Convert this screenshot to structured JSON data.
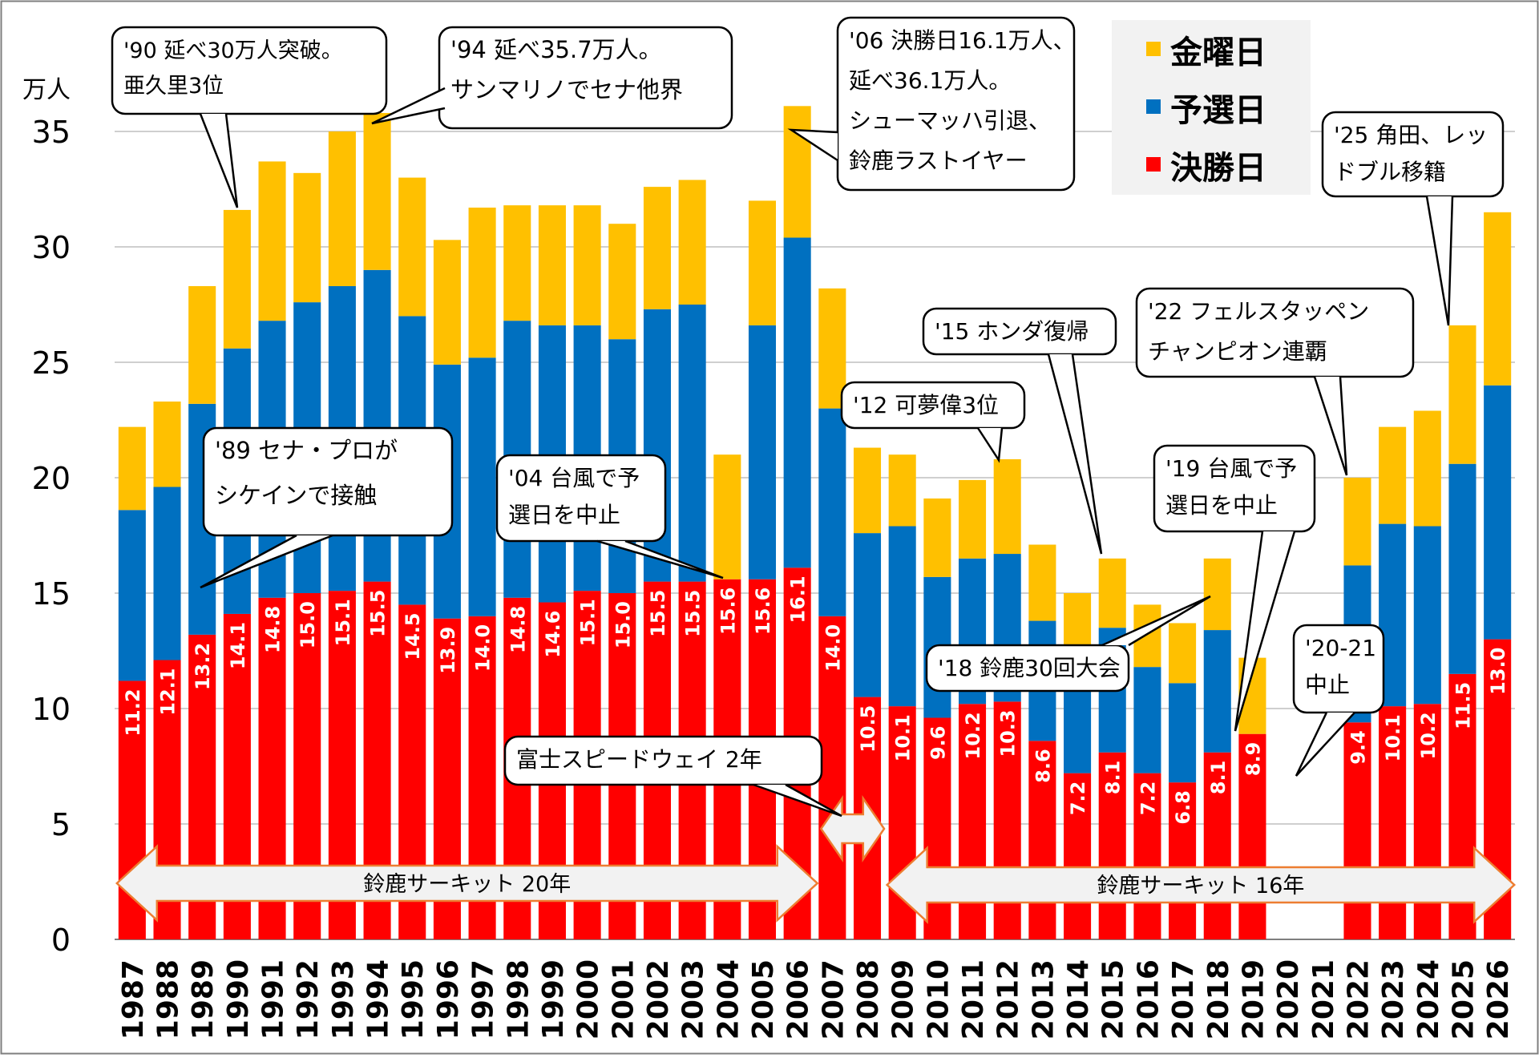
{
  "chart_data": {
    "type": "bar",
    "stacked": true,
    "y_unit": "万人",
    "ylim": [
      0,
      35.5
    ],
    "yticks": [
      0,
      5,
      10,
      15,
      20,
      25,
      30,
      35
    ],
    "grid": true,
    "legend_position": "top-right",
    "categories": [
      "1987",
      "1988",
      "1989",
      "1990",
      "1991",
      "1992",
      "1993",
      "1994",
      "1995",
      "1996",
      "1997",
      "1998",
      "1999",
      "2000",
      "2001",
      "2002",
      "2003",
      "2004",
      "2005",
      "2006",
      "2007",
      "2008",
      "2009",
      "2010",
      "2011",
      "2012",
      "2013",
      "2014",
      "2015",
      "2016",
      "2017",
      "2018",
      "2019",
      "2020",
      "2021",
      "2022",
      "2023",
      "2024",
      "2025",
      "2026"
    ],
    "series": [
      {
        "name": "決勝日",
        "color": "#ff0000",
        "values": [
          11.2,
          12.1,
          13.2,
          14.1,
          14.8,
          15.0,
          15.1,
          15.5,
          14.5,
          13.9,
          14.0,
          14.8,
          14.6,
          15.1,
          15.0,
          15.5,
          15.5,
          15.6,
          15.6,
          16.1,
          14.0,
          10.5,
          10.1,
          9.6,
          10.2,
          10.3,
          8.6,
          7.2,
          8.1,
          7.2,
          6.8,
          8.1,
          8.9,
          null,
          null,
          9.4,
          10.1,
          10.2,
          11.5,
          13.0
        ],
        "labels": [
          "11.2",
          "12.1",
          "13.2",
          "14.1",
          "14.8",
          "15.0",
          "15.1",
          "15.5",
          "14.5",
          "13.9",
          "14.0",
          "14.8",
          "14.6",
          "15.1",
          "15.0",
          "15.5",
          "15.5",
          "15.6",
          "15.6",
          "16.1",
          "14.0",
          "10.5",
          "10.1",
          "9.6",
          "10.2",
          "10.3",
          "8.6",
          "7.2",
          "8.1",
          "7.2",
          "6.8",
          "8.1",
          "8.9",
          "",
          "",
          "9.4",
          "10.1",
          "10.2",
          "11.5",
          "13.0"
        ]
      },
      {
        "name": "予選日",
        "color": "#0070c0",
        "values": [
          7.4,
          7.5,
          10.0,
          11.5,
          12.0,
          12.6,
          13.2,
          13.5,
          12.5,
          11.0,
          11.2,
          12.0,
          12.0,
          11.5,
          11.0,
          11.8,
          12.0,
          0,
          11.0,
          14.3,
          9.0,
          7.1,
          7.8,
          6.1,
          6.3,
          6.4,
          5.2,
          5.3,
          5.4,
          4.6,
          4.3,
          5.3,
          0,
          null,
          null,
          6.8,
          7.9,
          7.7,
          9.1,
          11.0
        ]
      },
      {
        "name": "金曜日",
        "color": "#ffc000",
        "values": [
          3.6,
          3.7,
          5.1,
          6.0,
          6.9,
          5.6,
          6.7,
          6.8,
          6.0,
          5.4,
          6.5,
          5.0,
          5.2,
          5.2,
          5.0,
          5.3,
          5.4,
          5.4,
          5.4,
          5.7,
          5.2,
          3.7,
          3.1,
          3.4,
          3.4,
          4.1,
          3.3,
          2.5,
          3.0,
          2.7,
          2.6,
          3.1,
          3.3,
          null,
          null,
          3.8,
          4.2,
          5.0,
          6.0,
          7.5
        ]
      }
    ],
    "annotations": [
      {
        "id": "a90",
        "lines": [
          "'90 延べ30万人突破。",
          "亜久里3位"
        ]
      },
      {
        "id": "a94",
        "lines": [
          "'94 延べ35.7万人。",
          "サンマリノでセナ他界"
        ]
      },
      {
        "id": "a06",
        "lines": [
          "'06 決勝日16.1万人、",
          "延べ36.1万人。",
          "シューマッハ引退、",
          "鈴鹿ラストイヤー"
        ]
      },
      {
        "id": "a25",
        "lines": [
          "'25 角田、レッ",
          "ドブル移籍"
        ]
      },
      {
        "id": "a22",
        "lines": [
          "'22 フェルスタッペン",
          "チャンピオン連覇"
        ]
      },
      {
        "id": "a15",
        "lines": [
          "'15 ホンダ復帰"
        ]
      },
      {
        "id": "a12",
        "lines": [
          "'12 可夢偉3位"
        ]
      },
      {
        "id": "a89",
        "lines": [
          "'89 セナ・プロが",
          "シケインで接触"
        ]
      },
      {
        "id": "a04",
        "lines": [
          "'04 台風で予",
          "選日を中止"
        ]
      },
      {
        "id": "a19",
        "lines": [
          "'19 台風で予",
          "選日を中止"
        ]
      },
      {
        "id": "a18",
        "lines": [
          "'18 鈴鹿30回大会"
        ]
      },
      {
        "id": "a2021",
        "lines": [
          "'20-21",
          "中止"
        ]
      },
      {
        "id": "afuji",
        "lines": [
          "富士スピードウェイ 2年"
        ]
      }
    ],
    "periods": [
      {
        "label": "鈴鹿サーキット 20年",
        "from": "1987",
        "to": "2006"
      },
      {
        "label": "",
        "from": "2007",
        "to": "2008"
      },
      {
        "label": "鈴鹿サーキット 16年",
        "from": "2009",
        "to": "2026"
      }
    ]
  }
}
